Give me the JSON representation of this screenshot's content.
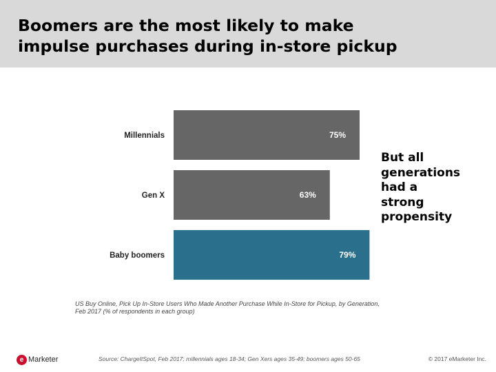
{
  "slide": {
    "title_lines": [
      "Boomers are the most likely to make",
      "impulse purchases during in-store pickup"
    ],
    "side_note_lines": [
      "But all",
      "generations",
      "had a",
      "strong",
      "propensity"
    ],
    "caption_lines": [
      "US Buy Online, Pick Up In-Store Users Who Made Another Purchase While In-Store for Pickup, by Generation,",
      "Feb 2017 (% of respondents in each group)"
    ],
    "source": "Source: ChargeItSpot, Feb 2017; millennials ages 18-34; Gen Xers ages 35-49; boomers ages 50-65",
    "copyright": "© 2017 eMarketer Inc.",
    "logo": {
      "mark": "e",
      "text": "Marketer",
      "color": "#c8102e"
    }
  },
  "chart_data": {
    "type": "bar",
    "orientation": "horizontal",
    "categories": [
      "Millennials",
      "Gen X",
      "Baby boomers"
    ],
    "values": [
      75,
      63,
      79
    ],
    "data_labels": [
      "75%",
      "63%",
      "79%"
    ],
    "colors": [
      "#666666",
      "#666666",
      "#2a6f8c"
    ],
    "xlim": [
      0,
      100
    ],
    "grid": false,
    "legend": "none"
  }
}
